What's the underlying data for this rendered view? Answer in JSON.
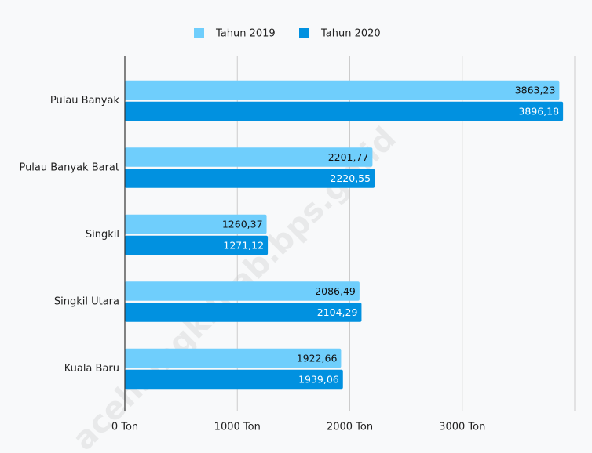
{
  "chart_data": {
    "type": "hbar",
    "categories": [
      "Pulau Banyak",
      "Pulau Banyak Barat",
      "Singkil",
      "Singkil Utara",
      "Kuala Baru"
    ],
    "series": [
      {
        "name": "Tahun 2019",
        "color": "#6fcefc",
        "values": [
          3863.23,
          2201.77,
          1260.37,
          2086.49,
          1922.66
        ],
        "value_labels": [
          "3863,23",
          "2201,77",
          "1260,37",
          "2086,49",
          "1922,66"
        ]
      },
      {
        "name": "Tahun 2020",
        "color": "#0191e0",
        "values": [
          3896.18,
          2220.55,
          1271.12,
          2104.29,
          1939.06
        ],
        "value_labels": [
          "3896,18",
          "2220,55",
          "1271,12",
          "2104,29",
          "1939,06"
        ]
      }
    ],
    "xlim": [
      0,
      4000
    ],
    "xticks": [
      {
        "value": 0,
        "label": "0 Ton"
      },
      {
        "value": 1000,
        "label": "1000 Ton"
      },
      {
        "value": 2000,
        "label": "2000 Ton"
      },
      {
        "value": 3000,
        "label": "3000 Ton"
      }
    ],
    "grid": true,
    "legend": "top",
    "watermark": "acehsingkilkab.bps.go.id"
  }
}
